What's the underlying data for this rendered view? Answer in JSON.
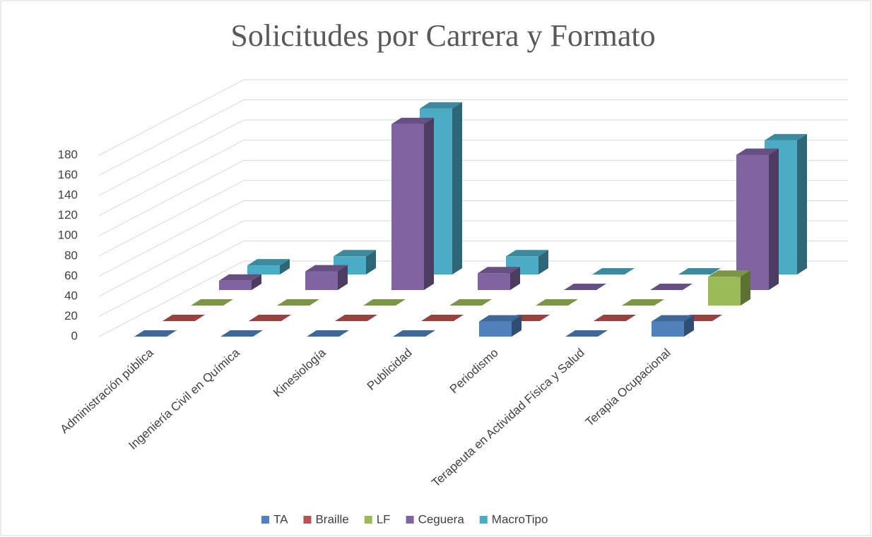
{
  "chart_data": {
    "type": "bar3d",
    "title": "Solicitudes por Carrera y Formato",
    "categories": [
      "Administración pública",
      "Ingeniería Civil en Química",
      "Kinesiología",
      "Publicidad",
      "Periodismo",
      "Terapeuta en Actividad Física y Salud",
      "Terapia Ocupacional"
    ],
    "series": [
      {
        "name": "TA",
        "color": "#4f81bd",
        "values": [
          0,
          0,
          0,
          0,
          15,
          0,
          15
        ]
      },
      {
        "name": "Braille",
        "color": "#c0504d",
        "values": [
          0,
          0,
          0,
          0,
          0,
          0,
          0
        ]
      },
      {
        "name": "LF",
        "color": "#9bbb59",
        "values": [
          0,
          0,
          0,
          0,
          0,
          0,
          30
        ]
      },
      {
        "name": "Ceguera",
        "color": "#8064a2",
        "values": [
          10,
          20,
          178,
          18,
          0,
          0,
          145
        ]
      },
      {
        "name": "MacroTipo",
        "color": "#4bacc6",
        "values": [
          10,
          20,
          183,
          20,
          0,
          0,
          148
        ]
      }
    ],
    "ylim": [
      0,
      180
    ],
    "yticks": [
      0,
      20,
      40,
      60,
      80,
      100,
      120,
      140,
      160,
      180
    ],
    "grid": true,
    "legend": "bottom"
  }
}
